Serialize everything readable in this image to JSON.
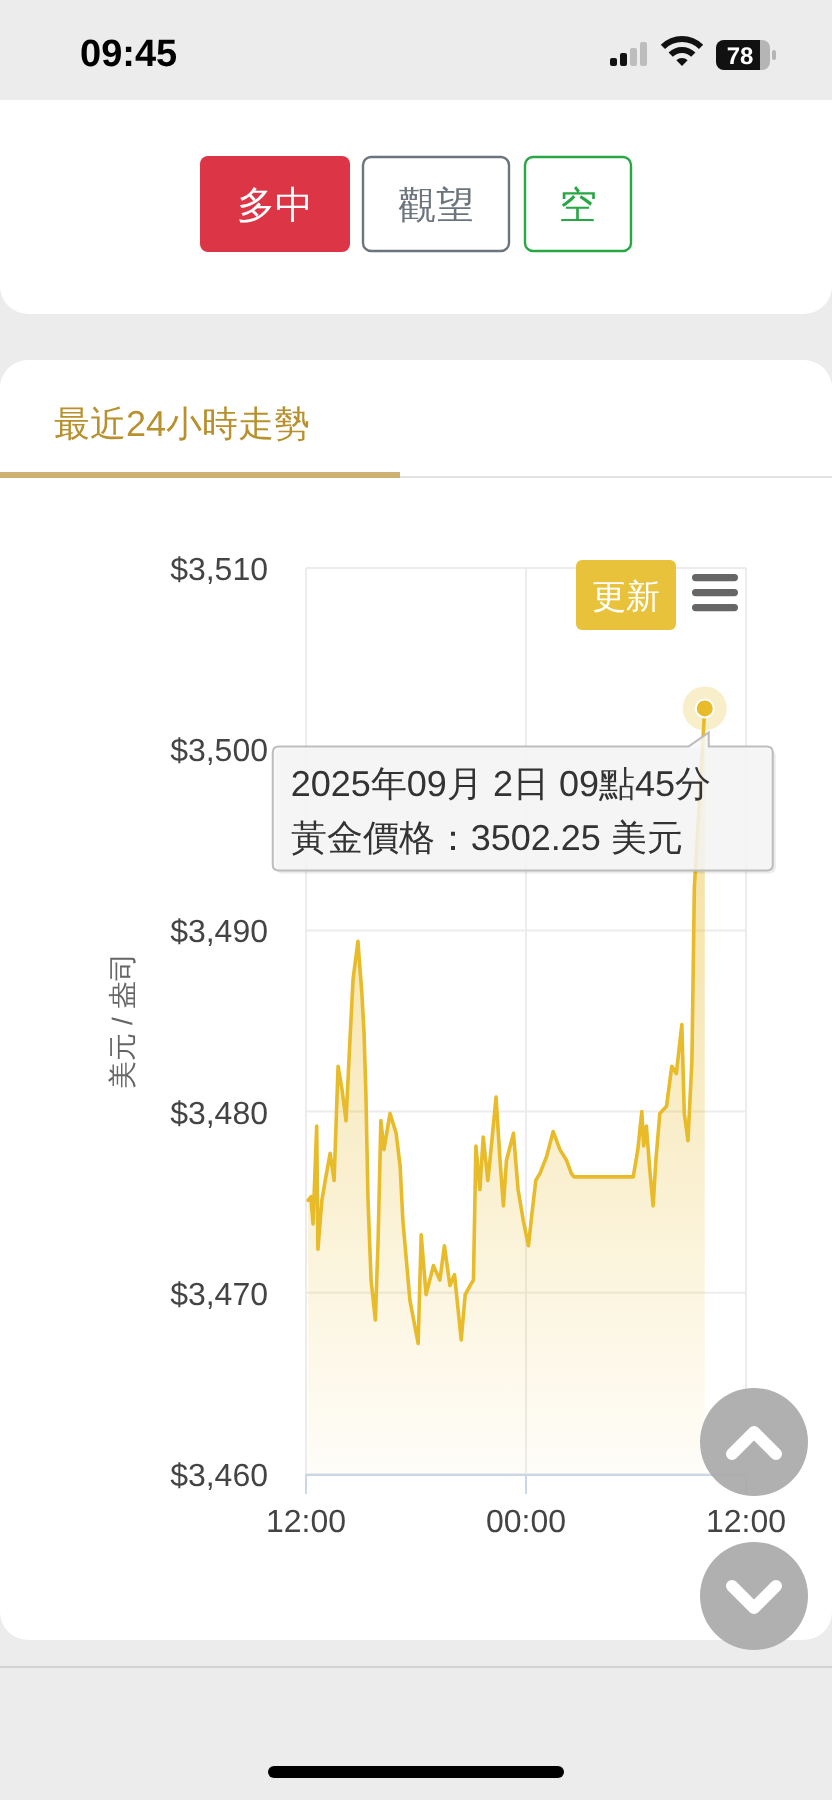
{
  "chart_data": {
    "type": "area",
    "title": "最近24小時走勢",
    "ylabel": "美元 / 盎司",
    "x": [
      "2025-09-01T12:07",
      "2025-09-01T12:16",
      "2025-09-01T12:23",
      "2025-09-01T12:35",
      "2025-09-01T12:39",
      "2025-09-01T12:52",
      "2025-09-01T13:05",
      "2025-09-01T13:19",
      "2025-09-01T13:32",
      "2025-09-01T13:45",
      "2025-09-01T13:58",
      "2025-09-01T14:11",
      "2025-09-01T14:24",
      "2025-09-01T14:34",
      "2025-09-01T14:50",
      "2025-09-01T14:57",
      "2025-09-01T15:03",
      "2025-09-01T15:10",
      "2025-09-01T15:16",
      "2025-09-01T15:23",
      "2025-09-01T15:33",
      "2025-09-01T15:47",
      "2025-09-01T15:56",
      "2025-09-01T16:05",
      "2025-09-01T16:15",
      "2025-09-01T16:35",
      "2025-09-01T16:55",
      "2025-09-01T17:08",
      "2025-09-01T17:17",
      "2025-09-01T17:40",
      "2025-09-01T18:07",
      "2025-09-01T18:17",
      "2025-09-01T18:33",
      "2025-09-01T18:57",
      "2025-09-01T19:18",
      "2025-09-01T19:33",
      "2025-09-01T19:51",
      "2025-09-01T20:06",
      "2025-09-01T20:28",
      "2025-09-01T20:41",
      "2025-09-01T20:57",
      "2025-09-01T21:08",
      "2025-09-01T21:16",
      "2025-09-01T21:29",
      "2025-09-01T21:40",
      "2025-09-01T21:55",
      "2025-09-01T22:02",
      "2025-09-01T22:22",
      "2025-09-01T22:35",
      "2025-09-01T22:46",
      "2025-09-01T22:56",
      "2025-09-01T23:19",
      "2025-09-01T23:34",
      "2025-09-01T23:51",
      "2025-09-02T00:08",
      "2025-09-02T00:19",
      "2025-09-02T00:32",
      "2025-09-02T00:46",
      "2025-09-02T01:07",
      "2025-09-02T01:29",
      "2025-09-02T01:51",
      "2025-09-02T02:13",
      "2025-09-02T02:28",
      "2025-09-02T02:37",
      "2025-09-02T05:51",
      "2025-09-02T06:06",
      "2025-09-02T06:19",
      "2025-09-02T06:25",
      "2025-09-02T06:34",
      "2025-09-02T06:45",
      "2025-09-02T06:56",
      "2025-09-02T07:05",
      "2025-09-02T07:18",
      "2025-09-02T07:40",
      "2025-09-02T07:57",
      "2025-09-02T08:12",
      "2025-09-02T08:30",
      "2025-09-02T08:38",
      "2025-09-02T08:50",
      "2025-09-02T09:03",
      "2025-09-02T09:11",
      "2025-09-02T09:45"
    ],
    "values": [
      3475.1,
      3475.3,
      3473.8,
      3479.2,
      3472.4,
      3475.1,
      3476.4,
      3477.7,
      3476.2,
      3482.5,
      3481.2,
      3479.5,
      3484.0,
      3487.3,
      3489.4,
      3487.8,
      3486.5,
      3484.3,
      3481.0,
      3475.1,
      3470.7,
      3468.5,
      3472.9,
      3479.5,
      3477.9,
      3479.9,
      3478.8,
      3477.0,
      3474.0,
      3469.6,
      3467.2,
      3473.2,
      3469.9,
      3471.5,
      3470.7,
      3472.6,
      3470.4,
      3471.0,
      3467.4,
      3469.9,
      3470.4,
      3470.7,
      3478.1,
      3475.7,
      3478.6,
      3476.2,
      3477.3,
      3480.8,
      3477.3,
      3474.8,
      3477.3,
      3478.8,
      3475.7,
      3474.0,
      3472.6,
      3474.3,
      3476.2,
      3476.6,
      3477.5,
      3478.9,
      3477.9,
      3477.3,
      3476.6,
      3476.4,
      3476.4,
      3477.9,
      3480.0,
      3478.1,
      3479.2,
      3476.8,
      3474.8,
      3477.3,
      3479.9,
      3480.3,
      3482.5,
      3482.1,
      3484.8,
      3479.9,
      3478.4,
      3482.8,
      3492.4,
      3502.25
    ],
    "color": "#e8bb2a",
    "xlim": [
      "2025-09-01T12:00",
      "2025-09-02T12:00"
    ],
    "xticks": [
      {
        "value": "2025-09-01T12:00",
        "label": "12:00"
      },
      {
        "value": "2025-09-02T00:00",
        "label": "00:00"
      },
      {
        "value": "2025-09-02T12:00",
        "label": "12:00"
      }
    ],
    "ylim": [
      3460,
      3510
    ],
    "yticks": [
      {
        "value": 3460,
        "label": "$3,460"
      },
      {
        "value": 3470,
        "label": "$3,470"
      },
      {
        "value": 3480,
        "label": "$3,480"
      },
      {
        "value": 3490,
        "label": "$3,490"
      },
      {
        "value": 3500,
        "label": "$3,500"
      },
      {
        "value": 3510,
        "label": "$3,510"
      }
    ],
    "grid": true,
    "annotations": [
      "09:45",
      "78",
      "多中",
      "觀望",
      "空",
      "更新",
      {
        "text": "2025年09月 2日 09點45分",
        "x": "2025-09-02T09:45",
        "y": 3502.25
      },
      "黃金價格：3502.25 美元"
    ]
  }
}
